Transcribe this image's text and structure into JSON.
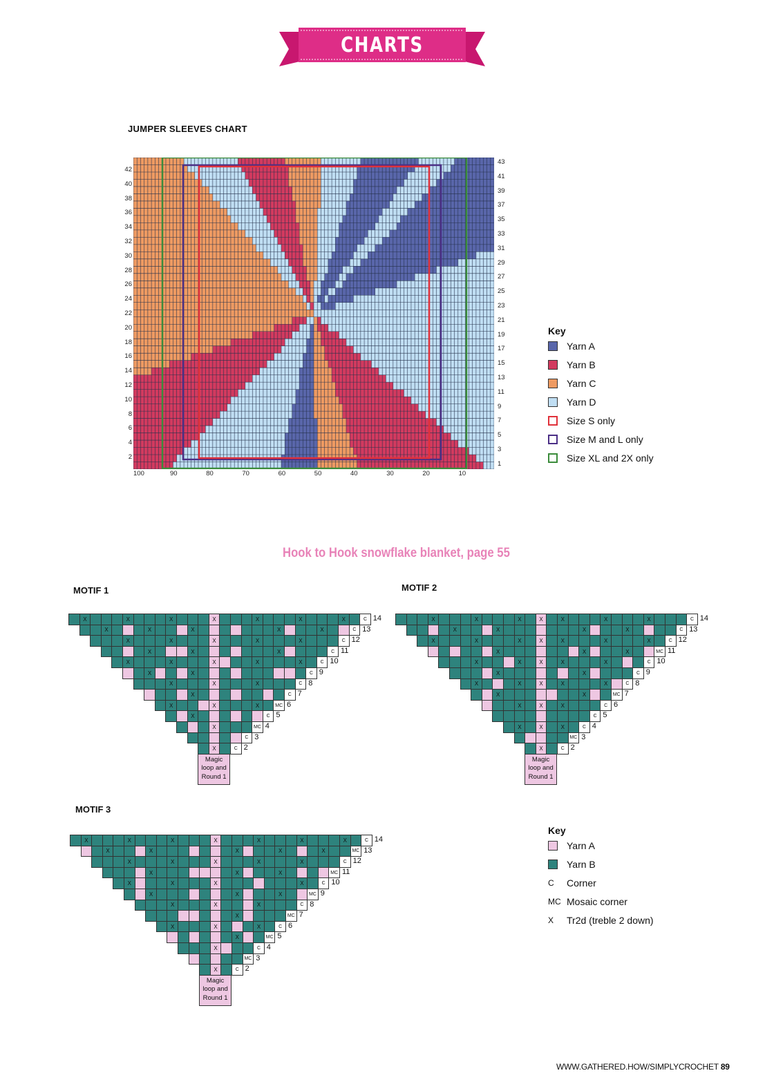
{
  "header": {
    "banner_text": "CHARTS",
    "banner_color": "#de2d87"
  },
  "sleeves_chart": {
    "title": "JUMPER SLEEVES CHART",
    "left_row_labels": [
      "42",
      "40",
      "38",
      "36",
      "34",
      "32",
      "30",
      "28",
      "26",
      "24",
      "22",
      "20",
      "18",
      "16",
      "14",
      "12",
      "10",
      "8",
      "6",
      "4",
      "2"
    ],
    "right_row_labels": [
      "43",
      "41",
      "39",
      "37",
      "35",
      "33",
      "31",
      "29",
      "27",
      "25",
      "23",
      "21",
      "19",
      "17",
      "15",
      "13",
      "11",
      "9",
      "7",
      "5",
      "3",
      "1"
    ],
    "column_labels": [
      "100",
      "90",
      "80",
      "70",
      "60",
      "50",
      "40",
      "30",
      "20",
      "10"
    ],
    "colors": {
      "yarn_a": "#5966aa",
      "yarn_b": "#d23a5f",
      "yarn_c": "#ee9a62",
      "yarn_d": "#c0def3",
      "size_s": "#e0313a",
      "size_ml": "#4b2f86",
      "size_xl": "#3b8c3b"
    },
    "key": {
      "title": "Key",
      "items": [
        {
          "label": "Yarn A",
          "kind": "fill",
          "color": "#5966aa"
        },
        {
          "label": "Yarn B",
          "kind": "fill",
          "color": "#d23a5f"
        },
        {
          "label": "Yarn C",
          "kind": "fill",
          "color": "#ee9a62"
        },
        {
          "label": "Yarn D",
          "kind": "fill",
          "color": "#c0def3"
        },
        {
          "label": "Size S only",
          "kind": "outline",
          "color": "#e0313a"
        },
        {
          "label": "Size M and L only",
          "kind": "outline",
          "color": "#4b2f86"
        },
        {
          "label": "Size XL and 2X only",
          "kind": "outline",
          "color": "#3b8c3b"
        }
      ]
    }
  },
  "blanket": {
    "subheading": "Hook to Hook snowflake blanket, page 55",
    "motifs": [
      {
        "title": "MOTIF 1",
        "magic_lines": [
          "Magic",
          "loop and",
          "Round 1"
        ],
        "corner_symbols": [
          "C",
          "C",
          "C",
          "C",
          "C",
          "C",
          "C",
          "C",
          "MC",
          "C",
          "MC",
          "C",
          "C"
        ]
      },
      {
        "title": "MOTIF 2",
        "magic_lines": [
          "Magic",
          "loop and",
          "Round 1"
        ],
        "corner_symbols": [
          "C",
          "C",
          "C",
          "MC",
          "C",
          "C",
          "C",
          "MC",
          "C",
          "C",
          "C",
          "MC",
          "C"
        ]
      },
      {
        "title": "MOTIF 3",
        "magic_lines": [
          "Magic",
          "loop and",
          "Round 1"
        ],
        "corner_symbols": [
          "C",
          "MC",
          "C",
          "MC",
          "C",
          "MC",
          "C",
          "MC",
          "C",
          "MC",
          "C",
          "MC",
          "C"
        ]
      }
    ],
    "round_numbers": [
      "14",
      "13",
      "12",
      "11",
      "10",
      "9",
      "8",
      "7",
      "6",
      "5",
      "4",
      "3",
      "2"
    ],
    "key": {
      "title": "Key",
      "items": [
        {
          "symbol": "",
          "label": "Yarn A",
          "color": "#eec7e2"
        },
        {
          "symbol": "",
          "label": "Yarn B",
          "color": "#2e837d"
        },
        {
          "symbol": "C",
          "label": "Corner"
        },
        {
          "symbol": "MC",
          "label": "Mosaic corner"
        },
        {
          "symbol": "X",
          "label": "Tr2d (treble 2 down)"
        }
      ]
    },
    "colors": {
      "yarn_a": "#eec7e2",
      "yarn_b": "#2e837d"
    }
  },
  "footer": {
    "url": "WWW.GATHERED.HOW/SIMPLYCROCHET",
    "page_number": "89"
  }
}
